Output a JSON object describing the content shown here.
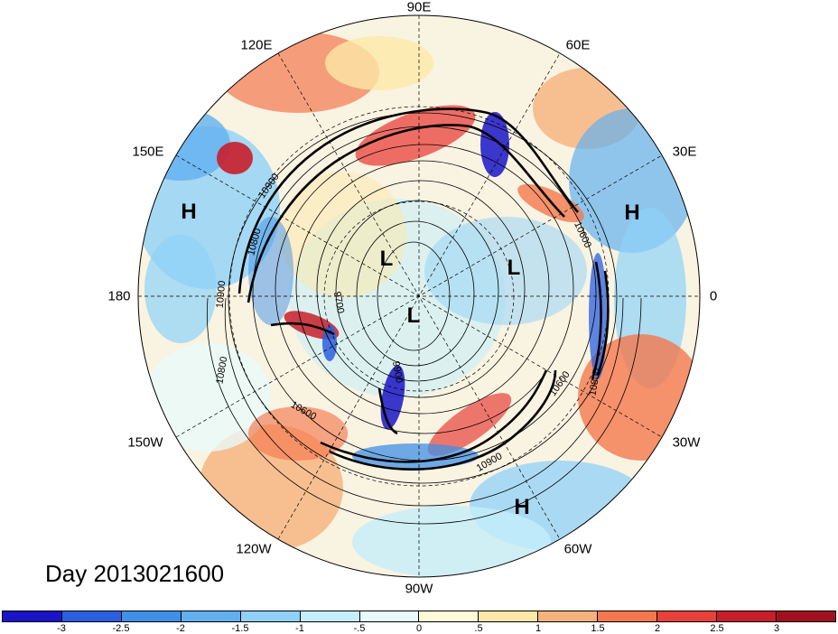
{
  "map": {
    "projection": "north-polar-stereographic",
    "longitude_labels": [
      {
        "id": "lon-90e",
        "text": "90E"
      },
      {
        "id": "lon-60e",
        "text": "60E"
      },
      {
        "id": "lon-30e",
        "text": "30E"
      },
      {
        "id": "lon-0",
        "text": "0"
      },
      {
        "id": "lon-30w",
        "text": "30W"
      },
      {
        "id": "lon-60w",
        "text": "60W"
      },
      {
        "id": "lon-90w",
        "text": "90W"
      },
      {
        "id": "lon-120w",
        "text": "120W"
      },
      {
        "id": "lon-150w",
        "text": "150W"
      },
      {
        "id": "lon-180",
        "text": "180"
      },
      {
        "id": "lon-150e",
        "text": "150E"
      },
      {
        "id": "lon-120e",
        "text": "120E"
      }
    ],
    "pressure_systems": [
      {
        "id": "high-150e",
        "text": "H"
      },
      {
        "id": "high-30e",
        "text": "H"
      },
      {
        "id": "low-siberia",
        "text": "L"
      },
      {
        "id": "low-europe",
        "text": "L"
      },
      {
        "id": "low-pole",
        "text": "L"
      },
      {
        "id": "high-atlantic",
        "text": "H"
      }
    ],
    "contour_labels": [
      {
        "id": "cl-10900-a",
        "text": "10900"
      },
      {
        "id": "cl-10800-a",
        "text": "10800"
      },
      {
        "id": "cl-10900-b",
        "text": "10900"
      },
      {
        "id": "cl-10800-b",
        "text": "10800"
      },
      {
        "id": "cl-10600-a",
        "text": "10600"
      },
      {
        "id": "cl-10900-c",
        "text": "10900"
      },
      {
        "id": "cl-10600-b",
        "text": "10600"
      },
      {
        "id": "cl-10800-c",
        "text": "10800"
      },
      {
        "id": "cl-10600-c",
        "text": "10600"
      },
      {
        "id": "cl-9700",
        "text": "9700"
      },
      {
        "id": "cl-9900",
        "text": "9900"
      }
    ],
    "day_label": "Day 2013021600"
  },
  "colorbar": {
    "colors": [
      "#1a14c8",
      "#2a5fe0",
      "#3f8fe6",
      "#62b0f0",
      "#8fd1f8",
      "#c4eefa",
      "#e8fafa",
      "#fffad8",
      "#fde8a8",
      "#f6b27c",
      "#f4784e",
      "#e8403a",
      "#c81e2a",
      "#a0101e"
    ],
    "ticks": [
      "-3",
      "-2.5",
      "-2",
      "-1.5",
      "-1",
      "-.5",
      "0",
      ".5",
      "1",
      "1.5",
      "2",
      "2.5",
      "3"
    ]
  }
}
